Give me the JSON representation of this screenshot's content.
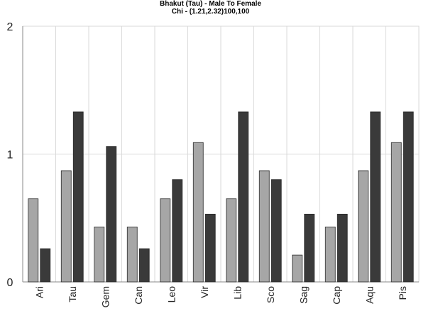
{
  "chart_data": {
    "type": "bar",
    "title": "Bhakut (Tau) - Male To Female",
    "subtitle": "Chi - (1.21,2.32)100,100",
    "categories": [
      "Ari",
      "Tau",
      "Gem",
      "Can",
      "Leo",
      "Vir",
      "Lib",
      "Sco",
      "Sag",
      "Cap",
      "Aqu",
      "Pis"
    ],
    "series": [
      {
        "values": [
          0.65,
          0.87,
          0.43,
          0.43,
          0.65,
          1.09,
          0.65,
          0.87,
          0.21,
          0.43,
          0.87,
          1.09
        ]
      },
      {
        "values": [
          0.26,
          1.33,
          1.06,
          0.26,
          0.8,
          0.53,
          1.33,
          0.8,
          0.53,
          0.53,
          1.33,
          1.33
        ]
      }
    ],
    "ylim": [
      0,
      2
    ],
    "yticks": [
      "0",
      "1",
      "2"
    ],
    "grid": true,
    "colors": {
      "series1": "#a6a6a6",
      "series2": "#3a3a3a",
      "grid": "#d9d9d9",
      "axis": "#888888"
    }
  }
}
